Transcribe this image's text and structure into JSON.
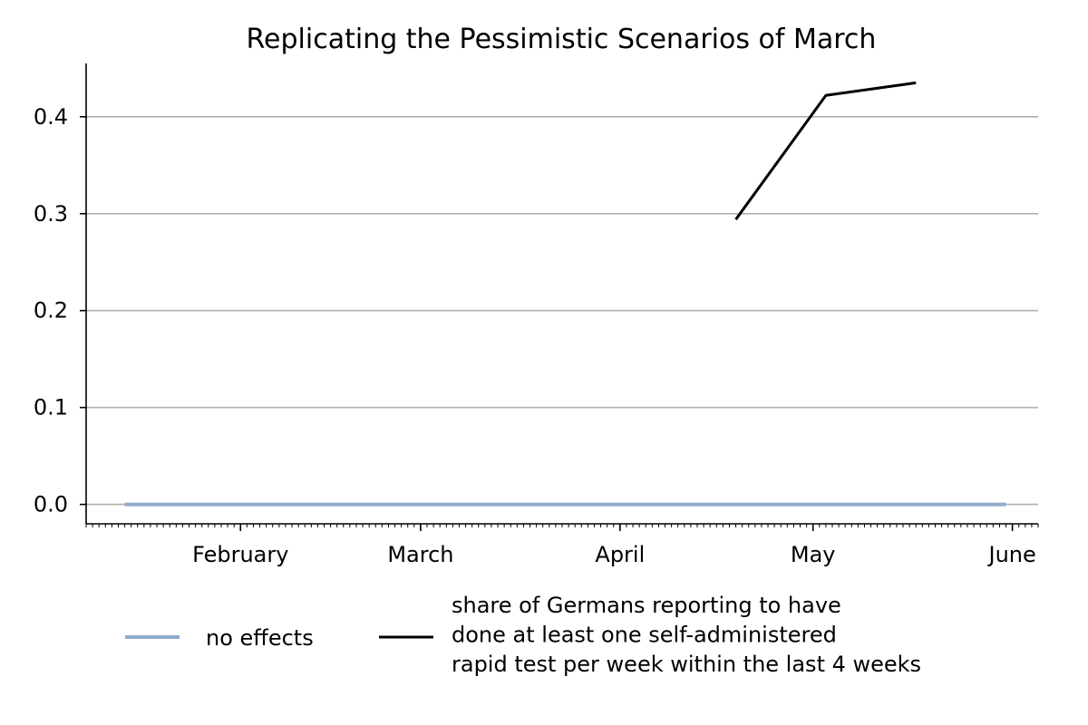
{
  "chart_data": {
    "type": "line",
    "title": "Replicating the Pessimistic Scenarios of March",
    "xlabel": "",
    "ylabel": "",
    "x_axis_type": "date",
    "xlim": [
      "2021-01-08",
      "2021-06-05"
    ],
    "ylim": [
      -0.02,
      0.455
    ],
    "yticks": [
      0.0,
      0.1,
      0.2,
      0.3,
      0.4
    ],
    "ytick_labels": [
      "0.0",
      "0.1",
      "0.2",
      "0.3",
      "0.4"
    ],
    "xticks": [
      {
        "date": "2021-02-01",
        "label": "February"
      },
      {
        "date": "2021-03-01",
        "label": "March"
      },
      {
        "date": "2021-04-01",
        "label": "April"
      },
      {
        "date": "2021-05-01",
        "label": "May"
      },
      {
        "date": "2021-06-01",
        "label": "June"
      }
    ],
    "minor_ticks": "daily",
    "grid": "horizontal",
    "legend_position": "bottom",
    "series": [
      {
        "name": "no effects",
        "color": "#8faccc",
        "points": [
          {
            "x": "2021-01-14",
            "y": 0.0
          },
          {
            "x": "2021-05-31",
            "y": 0.0
          }
        ]
      },
      {
        "name": "share of Germans reporting to have done at least one self-administered rapid test per week within the last 4 weeks",
        "legend_lines": [
          "share of Germans reporting to have",
          "done at least one self-administered",
          "rapid test per week within the last 4 weeks"
        ],
        "color": "#000000",
        "points": [
          {
            "x": "2021-04-19",
            "y": 0.294
          },
          {
            "x": "2021-05-03",
            "y": 0.422
          },
          {
            "x": "2021-05-17",
            "y": 0.435
          }
        ]
      }
    ]
  }
}
